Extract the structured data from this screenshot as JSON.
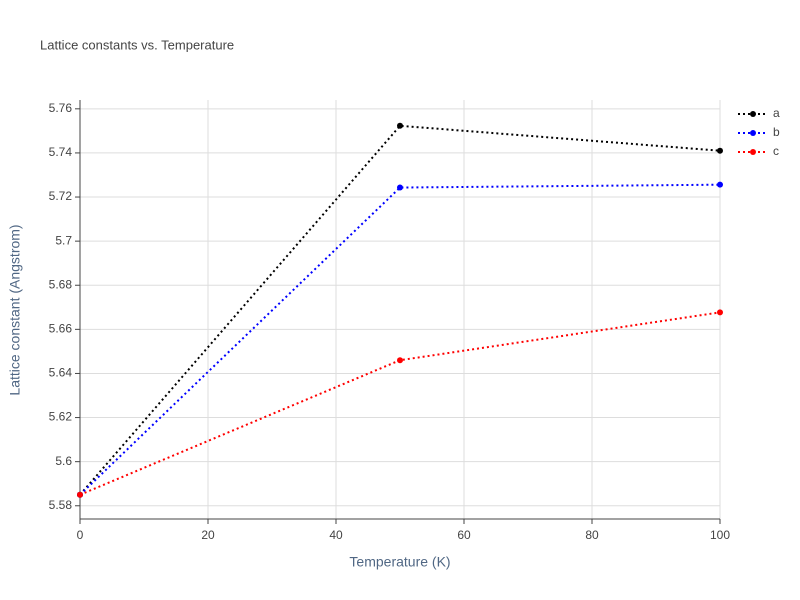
{
  "chart_data": {
    "type": "line",
    "title": "Lattice constants vs. Temperature",
    "x_label": "Temperature (K)",
    "y_label": "Lattice constant (Angstrom)",
    "x": [
      0,
      50,
      100
    ],
    "series": [
      {
        "name": "a",
        "color": "#000000",
        "values": [
          5.585,
          5.7523,
          5.741
        ]
      },
      {
        "name": "b",
        "color": "#0000ff",
        "values": [
          5.585,
          5.7243,
          5.7256
        ]
      },
      {
        "name": "c",
        "color": "#ff0000",
        "values": [
          5.585,
          5.646,
          5.6677
        ]
      }
    ],
    "xlim": [
      0,
      100
    ],
    "xticks": [
      0,
      20,
      40,
      60,
      80,
      100
    ],
    "ylim": [
      5.574,
      5.764
    ],
    "yticks": [
      5.58,
      5.6,
      5.62,
      5.64,
      5.66,
      5.68,
      5.7,
      5.72,
      5.74,
      5.76
    ],
    "grid": true,
    "legend": "top-right",
    "line_style": "dotted"
  }
}
